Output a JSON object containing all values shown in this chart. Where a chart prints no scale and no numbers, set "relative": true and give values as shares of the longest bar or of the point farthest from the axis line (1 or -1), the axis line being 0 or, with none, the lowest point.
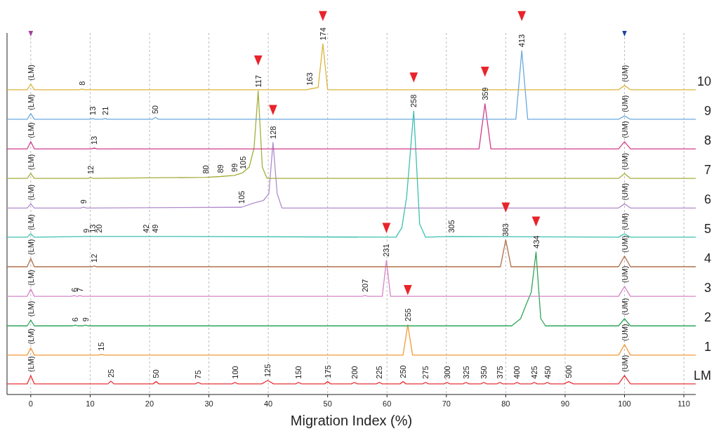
{
  "chart_data": {
    "type": "line",
    "xlabel": "Migration Index (%)",
    "xlim": [
      -4,
      112
    ],
    "xticks": [
      0,
      10,
      20,
      30,
      40,
      50,
      60,
      70,
      80,
      90,
      100,
      110
    ],
    "relative": true,
    "grid": "x",
    "legend": false,
    "marker": "none",
    "line_style": "solid",
    "series": [
      {
        "name": "LM",
        "color": "#e8343a",
        "x": [
          -4,
          -0.6,
          0,
          0.6,
          13,
          13.5,
          14,
          20.6,
          21.1,
          21.6,
          27.7,
          28.2,
          28.7,
          33.9,
          34.4,
          34.9,
          38.9,
          39.9,
          40.9,
          44.6,
          45.1,
          45.6,
          49.5,
          50,
          50.5,
          54,
          54.5,
          55,
          58.2,
          58.7,
          59.2,
          62.2,
          62.7,
          63.2,
          66,
          66.5,
          67,
          69.6,
          70.1,
          70.6,
          72.8,
          73.3,
          73.8,
          75.8,
          76.3,
          76.8,
          78.5,
          79,
          79.5,
          81.4,
          81.9,
          82.4,
          84.3,
          84.8,
          85.3,
          86.5,
          87,
          87.5,
          89.8,
          90.6,
          91.4,
          99,
          100,
          101,
          112
        ],
        "values": [
          0.028,
          0.028,
          0.05,
          0.028,
          0.028,
          0.035,
          0.028,
          0.028,
          0.034,
          0.028,
          0.028,
          0.032,
          0.028,
          0.028,
          0.032,
          0.028,
          0.028,
          0.037,
          0.028,
          0.028,
          0.032,
          0.028,
          0.028,
          0.034,
          0.028,
          0.028,
          0.032,
          0.028,
          0.028,
          0.032,
          0.028,
          0.028,
          0.034,
          0.028,
          0.028,
          0.032,
          0.028,
          0.028,
          0.032,
          0.028,
          0.028,
          0.032,
          0.028,
          0.028,
          0.032,
          0.028,
          0.028,
          0.032,
          0.028,
          0.028,
          0.032,
          0.028,
          0.028,
          0.032,
          0.028,
          0.028,
          0.032,
          0.028,
          0.028,
          0.034,
          0.028,
          0.028,
          0.05,
          0.028,
          0.028
        ]
      },
      {
        "name": "1",
        "color": "#f39a3a",
        "x": [
          -4,
          -0.6,
          0,
          0.6,
          11.4,
          11.9,
          12.4,
          62.7,
          63.5,
          64.3,
          99,
          100,
          101,
          112
        ],
        "values": [
          0.104,
          0.104,
          0.123,
          0.104,
          0.104,
          0.106,
          0.104,
          0.104,
          0.184,
          0.104,
          0.104,
          0.132,
          0.104,
          0.104
        ]
      },
      {
        "name": "2",
        "color": "#2ea55a",
        "x": [
          -4,
          -0.6,
          0,
          0.6,
          7,
          7.5,
          8,
          8.7,
          9.2,
          9.7,
          81,
          82.5,
          83.5,
          84.3,
          85.1,
          85.9,
          86.7,
          99,
          100,
          101,
          112
        ],
        "values": [
          0.181,
          0.181,
          0.196,
          0.181,
          0.181,
          0.183,
          0.181,
          0.181,
          0.183,
          0.181,
          0.181,
          0.2,
          0.24,
          0.27,
          0.376,
          0.2,
          0.181,
          0.181,
          0.2,
          0.181,
          0.181
        ]
      },
      {
        "name": "3",
        "color": "#d685c8",
        "x": [
          -4,
          -0.6,
          0,
          0.6,
          6.9,
          7.3,
          7.7,
          7.9,
          8.3,
          8.7,
          55.8,
          56.3,
          56.8,
          59.2,
          59.9,
          60.6,
          99,
          100,
          101,
          112
        ],
        "values": [
          0.259,
          0.259,
          0.278,
          0.259,
          0.259,
          0.261,
          0.259,
          0.259,
          0.261,
          0.259,
          0.259,
          0.261,
          0.259,
          0.259,
          0.354,
          0.259,
          0.259,
          0.285,
          0.259,
          0.259
        ]
      },
      {
        "name": "4",
        "color": "#b0704a",
        "x": [
          -4,
          -0.6,
          0,
          0.6,
          10.3,
          10.7,
          11.1,
          79.1,
          80,
          80.9,
          99,
          100,
          101,
          112
        ],
        "values": [
          0.337,
          0.337,
          0.359,
          0.337,
          0.337,
          0.339,
          0.337,
          0.337,
          0.408,
          0.337,
          0.337,
          0.365,
          0.337,
          0.337
        ]
      },
      {
        "name": "5",
        "color": "#3cc0b0",
        "x": [
          -4,
          -0.6,
          0,
          0.6,
          9.4,
          10.4,
          11.5,
          19.4,
          21,
          61.5,
          62.5,
          63.3,
          64.5,
          65.5,
          66.5,
          70.8,
          99,
          100,
          101,
          112
        ],
        "values": [
          0.415,
          0.415,
          0.424,
          0.415,
          0.417,
          0.417,
          0.417,
          0.417,
          0.417,
          0.415,
          0.44,
          0.52,
          0.748,
          0.45,
          0.415,
          0.417,
          0.415,
          0.424,
          0.415,
          0.415
        ]
      },
      {
        "name": "6",
        "color": "#b08ccc",
        "x": [
          -4,
          -0.6,
          0,
          0.6,
          8.4,
          8.9,
          9.4,
          35.5,
          37.5,
          39.2,
          40.1,
          40.8,
          41.5,
          42.3,
          99,
          100,
          101,
          112
        ],
        "values": [
          0.492,
          0.492,
          0.503,
          0.492,
          0.492,
          0.494,
          0.492,
          0.494,
          0.505,
          0.512,
          0.53,
          0.665,
          0.53,
          0.492,
          0.492,
          0.503,
          0.492,
          0.492
        ]
      },
      {
        "name": "7",
        "color": "#a3ad3a",
        "x": [
          -4,
          -0.6,
          0,
          0.6,
          9.6,
          10.1,
          10.6,
          29.5,
          31.9,
          34.3,
          35.7,
          36.8,
          37.6,
          38.3,
          39,
          39.8,
          99,
          100,
          101,
          112
        ],
        "values": [
          0.57,
          0.57,
          0.583,
          0.57,
          0.57,
          0.572,
          0.57,
          0.573,
          0.575,
          0.578,
          0.585,
          0.6,
          0.65,
          0.801,
          0.6,
          0.57,
          0.57,
          0.583,
          0.57,
          0.57
        ]
      },
      {
        "name": "8",
        "color": "#d23c8c",
        "x": [
          -4,
          -0.6,
          0,
          0.6,
          10.2,
          10.7,
          11.2,
          75.5,
          76.5,
          77.5,
          99,
          100,
          101,
          112
        ],
        "values": [
          0.648,
          0.648,
          0.667,
          0.648,
          0.648,
          0.65,
          0.648,
          0.648,
          0.767,
          0.648,
          0.648,
          0.667,
          0.648,
          0.648
        ]
      },
      {
        "name": "9",
        "color": "#6aa8e0",
        "x": [
          -4,
          -0.6,
          0,
          0.6,
          10,
          10.4,
          10.8,
          12.1,
          12.5,
          12.9,
          20.5,
          21,
          21.5,
          81.7,
          82.7,
          83.7,
          99,
          100,
          101,
          112
        ],
        "values": [
          0.726,
          0.726,
          0.741,
          0.726,
          0.726,
          0.728,
          0.726,
          0.726,
          0.728,
          0.726,
          0.726,
          0.731,
          0.726,
          0.726,
          0.907,
          0.726,
          0.726,
          0.735,
          0.726,
          0.726
        ]
      },
      {
        "name": "10",
        "color": "#dcb43c",
        "x": [
          -4,
          -0.6,
          0,
          0.6,
          8.1,
          8.6,
          9.1,
          46.5,
          47,
          48.4,
          49.2,
          50,
          99,
          100,
          101,
          112
        ],
        "values": [
          0.804,
          0.804,
          0.819,
          0.804,
          0.804,
          0.806,
          0.804,
          0.804,
          0.806,
          0.81,
          0.925,
          0.804,
          0.804,
          0.815,
          0.804,
          0.804
        ]
      },
      {
        "type": "scatter",
        "marker": "triangle",
        "color": "#e8242a",
        "x": [
          63.5,
          85.1,
          59.9,
          80,
          64.5,
          40.8,
          38.3,
          76.5,
          82.7,
          49.2
        ],
        "values": [
          0.277,
          0.458,
          0.441,
          0.495,
          0.838,
          0.752,
          0.883,
          0.853,
          1,
          1
        ]
      },
      {
        "type": "scatter",
        "marker": "triangle",
        "colors": [
          "#a0409a",
          "#2040a0"
        ],
        "x": [
          0,
          100
        ],
        "values": [
          0.953,
          0.953
        ]
      }
    ],
    "annotations": [
      {
        "text": "(LM)",
        "x": 0,
        "y": 0.05
      },
      {
        "text": "25",
        "x": 13.5,
        "y": 0.035
      },
      {
        "text": "50",
        "x": 21.1,
        "y": 0.034
      },
      {
        "text": "75",
        "x": 28.2,
        "y": 0.032
      },
      {
        "text": "100",
        "x": 34.4,
        "y": 0.032
      },
      {
        "text": "125",
        "x": 39.9,
        "y": 0.037
      },
      {
        "text": "150",
        "x": 45.1,
        "y": 0.032
      },
      {
        "text": "175",
        "x": 50,
        "y": 0.034
      },
      {
        "text": "200",
        "x": 54.5,
        "y": 0.032
      },
      {
        "text": "225",
        "x": 58.7,
        "y": 0.032
      },
      {
        "text": "250",
        "x": 62.7,
        "y": 0.034
      },
      {
        "text": "275",
        "x": 66.5,
        "y": 0.032
      },
      {
        "text": "300",
        "x": 70.1,
        "y": 0.032
      },
      {
        "text": "325",
        "x": 73.3,
        "y": 0.032
      },
      {
        "text": "350",
        "x": 76.3,
        "y": 0.032
      },
      {
        "text": "375",
        "x": 79,
        "y": 0.032
      },
      {
        "text": "400",
        "x": 81.9,
        "y": 0.032
      },
      {
        "text": "425",
        "x": 84.8,
        "y": 0.032
      },
      {
        "text": "450",
        "x": 87,
        "y": 0.032
      },
      {
        "text": "500",
        "x": 90.6,
        "y": 0.034
      },
      {
        "text": "(UM)",
        "x": 100,
        "y": 0.05
      },
      {
        "text": "(LM)",
        "x": 0,
        "y": 0.123
      },
      {
        "text": "15",
        "x": 11.9,
        "y": 0.106
      },
      {
        "text": "255",
        "x": 63.5,
        "y": 0.184
      },
      {
        "text": "(UM)",
        "x": 100,
        "y": 0.132
      },
      {
        "text": "(LM)",
        "x": 0,
        "y": 0.196
      },
      {
        "text": "6",
        "x": 7.5,
        "y": 0.183
      },
      {
        "text": "9",
        "x": 9.2,
        "y": 0.183
      },
      {
        "text": "434",
        "x": 85.1,
        "y": 0.376
      },
      {
        "text": "(UM)",
        "x": 100,
        "y": 0.2
      },
      {
        "text": "(LM)",
        "x": 0,
        "y": 0.278
      },
      {
        "text": "6",
        "x": 7.3,
        "y": 0.261
      },
      {
        "text": "7",
        "x": 8.3,
        "y": 0.261
      },
      {
        "text": "207",
        "x": 56.3,
        "y": 0.261
      },
      {
        "text": "231",
        "x": 59.9,
        "y": 0.354
      },
      {
        "text": "(UM)",
        "x": 100,
        "y": 0.285
      },
      {
        "text": "(LM)",
        "x": 0,
        "y": 0.359
      },
      {
        "text": "12",
        "x": 10.7,
        "y": 0.339
      },
      {
        "text": "383",
        "x": 80,
        "y": 0.408
      },
      {
        "text": "(UM)",
        "x": 100,
        "y": 0.365
      },
      {
        "text": "(LM)",
        "x": 0,
        "y": 0.424
      },
      {
        "text": "9",
        "x": 9.4,
        "y": 0.417
      },
      {
        "text": "13",
        "x": 10.4,
        "y": 0.417
      },
      {
        "text": "20",
        "x": 11.5,
        "y": 0.417
      },
      {
        "text": "42",
        "x": 19.4,
        "y": 0.417
      },
      {
        "text": "49",
        "x": 21,
        "y": 0.417
      },
      {
        "text": "258",
        "x": 64.5,
        "y": 0.748
      },
      {
        "text": "305",
        "x": 70.8,
        "y": 0.417
      },
      {
        "text": "(UM)",
        "x": 100,
        "y": 0.424
      },
      {
        "text": "(LM)",
        "x": 0,
        "y": 0.503
      },
      {
        "text": "9",
        "x": 8.9,
        "y": 0.494
      },
      {
        "text": "105",
        "x": 35.5,
        "y": 0.494
      },
      {
        "text": "128",
        "x": 40.8,
        "y": 0.665
      },
      {
        "text": "(UM)",
        "x": 100,
        "y": 0.503
      },
      {
        "text": "(LM)",
        "x": 0,
        "y": 0.583
      },
      {
        "text": "12",
        "x": 10.1,
        "y": 0.572
      },
      {
        "text": "80",
        "x": 29.5,
        "y": 0.573
      },
      {
        "text": "89",
        "x": 31.9,
        "y": 0.575
      },
      {
        "text": "99",
        "x": 34.3,
        "y": 0.578
      },
      {
        "text": "105",
        "x": 35.7,
        "y": 0.585
      },
      {
        "text": "117",
        "x": 38.3,
        "y": 0.801
      },
      {
        "text": "(UM)",
        "x": 100,
        "y": 0.583
      },
      {
        "text": "(LM)",
        "x": 0,
        "y": 0.667
      },
      {
        "text": "13",
        "x": 10.7,
        "y": 0.65
      },
      {
        "text": "359",
        "x": 76.5,
        "y": 0.767
      },
      {
        "text": "(UM)",
        "x": 100,
        "y": 0.667
      },
      {
        "text": "(LM)",
        "x": 0,
        "y": 0.741
      },
      {
        "text": "13",
        "x": 10.4,
        "y": 0.728
      },
      {
        "text": "21",
        "x": 12.5,
        "y": 0.728
      },
      {
        "text": "50",
        "x": 21,
        "y": 0.731
      },
      {
        "text": "413",
        "x": 82.7,
        "y": 0.907
      },
      {
        "text": "(UM)",
        "x": 100,
        "y": 0.735
      },
      {
        "text": "(LM)",
        "x": 0,
        "y": 0.819
      },
      {
        "text": "8",
        "x": 8.6,
        "y": 0.806
      },
      {
        "text": "163",
        "x": 47,
        "y": 0.806
      },
      {
        "text": "174",
        "x": 49.2,
        "y": 0.925
      },
      {
        "text": "(UM)",
        "x": 100,
        "y": 0.815
      }
    ]
  }
}
